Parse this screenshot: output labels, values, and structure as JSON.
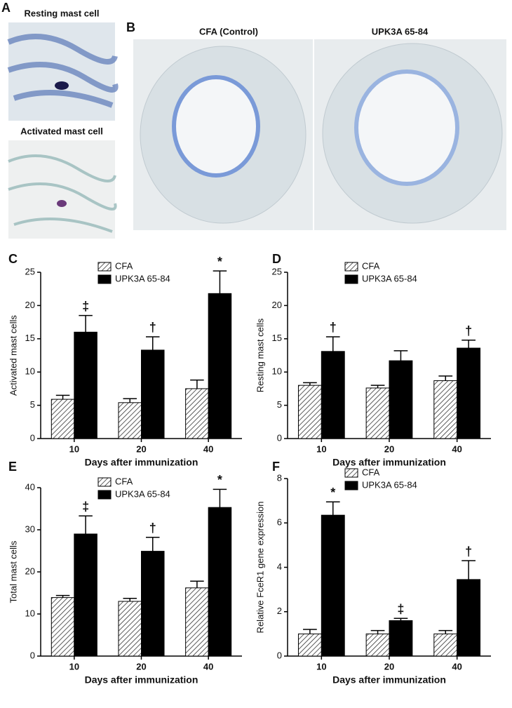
{
  "figure": {
    "panel_a": {
      "label": "A",
      "captions": [
        "Resting mast cell",
        "Activated mast cell"
      ]
    },
    "panel_b": {
      "label": "B",
      "captions": [
        "CFA (Control)",
        "UPK3A 65-84"
      ]
    }
  },
  "chart_data": [
    {
      "type": "bar",
      "panel": "C",
      "ylabel": "Activated mast cells",
      "xlabel": "Days after immunization",
      "categories": [
        "10",
        "20",
        "40"
      ],
      "series": [
        {
          "name": "CFA",
          "color": "#ffffff",
          "hatch": true,
          "values": [
            5.9,
            5.4,
            7.5
          ],
          "errors": [
            0.6,
            0.6,
            1.3
          ]
        },
        {
          "name": "UPK3A 65-84",
          "color": "#000000",
          "hatch": false,
          "values": [
            16.0,
            13.3,
            21.8
          ],
          "errors": [
            2.5,
            2.0,
            3.4
          ]
        }
      ],
      "annotations": [
        "‡",
        "†",
        "*"
      ],
      "ylim": [
        0,
        25
      ],
      "yticks": [
        0,
        5,
        10,
        15,
        20,
        25
      ]
    },
    {
      "type": "bar",
      "panel": "D",
      "ylabel": "Resting mast cells",
      "xlabel": "Days after immunization",
      "categories": [
        "10",
        "20",
        "40"
      ],
      "series": [
        {
          "name": "CFA",
          "color": "#ffffff",
          "hatch": true,
          "values": [
            8.0,
            7.6,
            8.7
          ],
          "errors": [
            0.4,
            0.4,
            0.7
          ]
        },
        {
          "name": "UPK3A 65-84",
          "color": "#000000",
          "hatch": false,
          "values": [
            13.1,
            11.7,
            13.6
          ],
          "errors": [
            2.2,
            1.5,
            1.2
          ]
        }
      ],
      "annotations": [
        "†",
        null,
        "†"
      ],
      "ylim": [
        0,
        25
      ],
      "yticks": [
        0,
        5,
        10,
        15,
        20,
        25
      ]
    },
    {
      "type": "bar",
      "panel": "E",
      "ylabel": "Total mast cells",
      "xlabel": "Days after immunization",
      "categories": [
        "10",
        "20",
        "40"
      ],
      "series": [
        {
          "name": "CFA",
          "color": "#ffffff",
          "hatch": true,
          "values": [
            13.9,
            13.0,
            16.2
          ],
          "errors": [
            0.5,
            0.7,
            1.6
          ]
        },
        {
          "name": "UPK3A 65-84",
          "color": "#000000",
          "hatch": false,
          "values": [
            29.0,
            24.9,
            35.3
          ],
          "errors": [
            4.3,
            3.3,
            4.3
          ]
        }
      ],
      "annotations": [
        "‡",
        "†",
        "*"
      ],
      "ylim": [
        0,
        40
      ],
      "yticks": [
        0,
        10,
        20,
        30,
        40
      ]
    },
    {
      "type": "bar",
      "panel": "F",
      "ylabel": "Relative FceR1 gene expression",
      "xlabel": "Days after immunization",
      "categories": [
        "10",
        "20",
        "40"
      ],
      "series": [
        {
          "name": "CFA",
          "color": "#ffffff",
          "hatch": true,
          "values": [
            1.0,
            1.0,
            1.0
          ],
          "errors": [
            0.2,
            0.15,
            0.15
          ]
        },
        {
          "name": "UPK3A 65-84",
          "color": "#000000",
          "hatch": false,
          "values": [
            6.35,
            1.6,
            3.45
          ],
          "errors": [
            0.6,
            0.1,
            0.85
          ]
        }
      ],
      "annotations": [
        "*",
        "‡",
        "†"
      ],
      "ylim": [
        0,
        8
      ],
      "yticks": [
        0,
        2,
        4,
        6,
        8
      ]
    }
  ]
}
